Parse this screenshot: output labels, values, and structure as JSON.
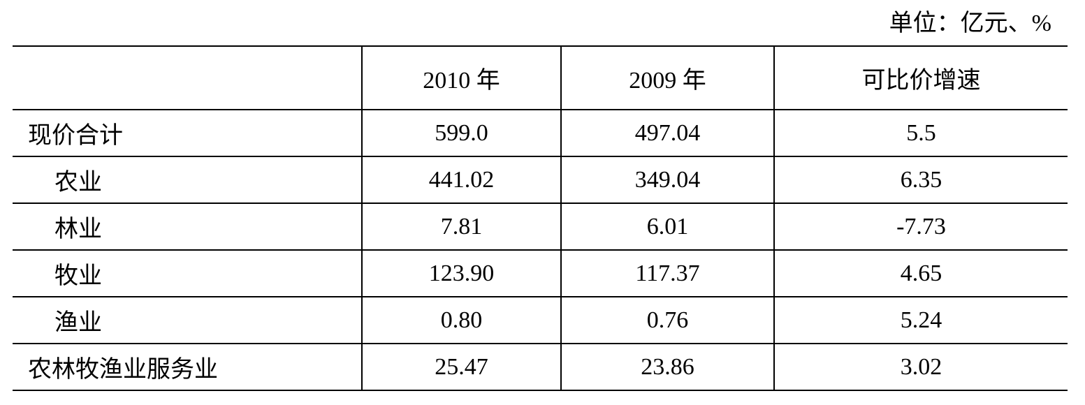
{
  "unit_note": "单位：亿元、%",
  "table": {
    "headers": [
      "",
      "2010 年",
      "2009 年",
      "可比价增速"
    ],
    "rows": [
      {
        "label": "现价合计",
        "indent": false,
        "v2010": "599.0",
        "v2009": "497.04",
        "growth": "5.5"
      },
      {
        "label": "农业",
        "indent": true,
        "v2010": "441.02",
        "v2009": "349.04",
        "growth": "6.35"
      },
      {
        "label": "林业",
        "indent": true,
        "v2010": "7.81",
        "v2009": "6.01",
        "growth": "-7.73"
      },
      {
        "label": "牧业",
        "indent": true,
        "v2010": "123.90",
        "v2009": "117.37",
        "growth": "4.65"
      },
      {
        "label": "渔业",
        "indent": true,
        "v2010": "0.80",
        "v2009": "0.76",
        "growth": "5.24"
      },
      {
        "label": "农林牧渔业服务业",
        "indent": false,
        "v2010": "25.47",
        "v2009": "23.86",
        "growth": "3.02"
      }
    ]
  }
}
